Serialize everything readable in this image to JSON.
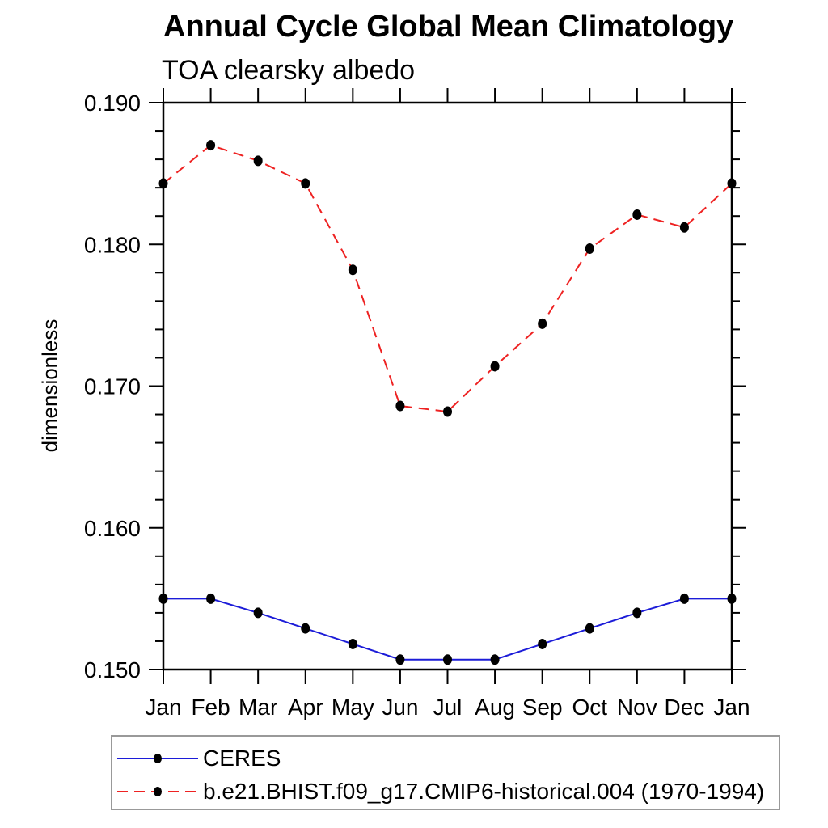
{
  "chart_data": {
    "type": "line",
    "title": "Annual Cycle Global Mean Climatology",
    "subtitle": "TOA clearsky albedo",
    "xlabel": "",
    "ylabel": "dimensionless",
    "categories": [
      "Jan",
      "Feb",
      "Mar",
      "Apr",
      "May",
      "Jun",
      "Jul",
      "Aug",
      "Sep",
      "Oct",
      "Nov",
      "Dec",
      "Jan"
    ],
    "ylim": [
      0.15,
      0.19
    ],
    "ytick_major": [
      0.15,
      0.16,
      0.17,
      0.18,
      0.19
    ],
    "ytick_labels": [
      "0.150",
      "0.160",
      "0.170",
      "0.180",
      "0.190"
    ],
    "ytick_minor_step": 0.002,
    "grid": false,
    "legend_position": "bottom-left-box",
    "series": [
      {
        "name": "CERES",
        "color": "#1c1cd8",
        "line_style": "solid",
        "marker": "filled-circle",
        "marker_color": "#000000",
        "values": [
          0.155,
          0.155,
          0.154,
          0.1529,
          0.1518,
          0.1507,
          0.1507,
          0.1507,
          0.1518,
          0.1529,
          0.154,
          0.155,
          0.155
        ]
      },
      {
        "name": "b.e21.BHIST.f09_g17.CMIP6-historical.004 (1970-1994)",
        "color": "#ee2222",
        "line_style": "dashed",
        "marker": "filled-circle",
        "marker_color": "#000000",
        "values": [
          0.1843,
          0.187,
          0.1859,
          0.1843,
          0.1782,
          0.1686,
          0.1682,
          0.1714,
          0.1744,
          0.1797,
          0.1821,
          0.1812,
          0.1843
        ]
      }
    ],
    "axis_color": "#000000"
  }
}
